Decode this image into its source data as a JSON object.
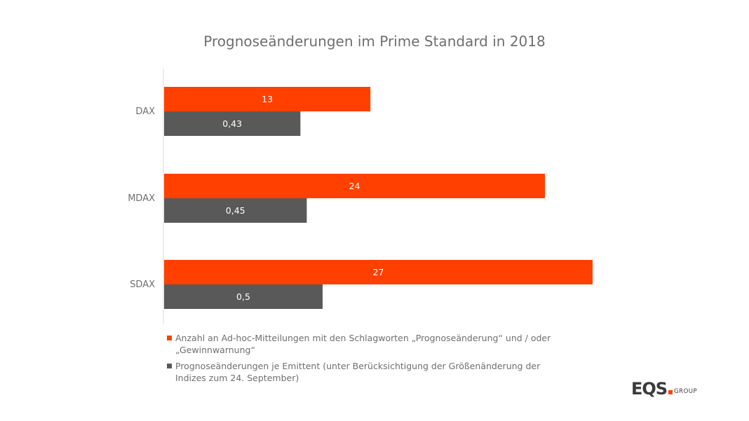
{
  "chart_data": {
    "type": "bar",
    "orientation": "horizontal",
    "title": "Prognoseänderungen im Prime Standard in 2018",
    "categories": [
      "DAX",
      "MDAX",
      "SDAX"
    ],
    "series": [
      {
        "name": "Anzahl an Ad-hoc-Mitteilungen mit den Schlagworten „Prognoseänderung“ und / oder „Gewinnwarnung“",
        "values": [
          13,
          24,
          27
        ],
        "labels": [
          "13",
          "24",
          "27"
        ],
        "color": "#ff4000"
      },
      {
        "name": "Prognoseänderungen je Emittent (unter Berücksichtigung der Größenänderung der Indizes zum 24. September)",
        "values": [
          0.43,
          0.45,
          0.5
        ],
        "labels": [
          "0,43",
          "0,45",
          "0,5"
        ],
        "color": "#595959"
      }
    ],
    "grid": false,
    "legend_position": "bottom-left"
  },
  "logo": {
    "text": "EQS",
    "subtext": "GROUP",
    "accent_color": "#ff4000",
    "text_color": "#3a3a3a"
  },
  "colors": {
    "title": "#6f6f6f",
    "axis": "#d9d9d9",
    "label": "#6f6f6f"
  }
}
